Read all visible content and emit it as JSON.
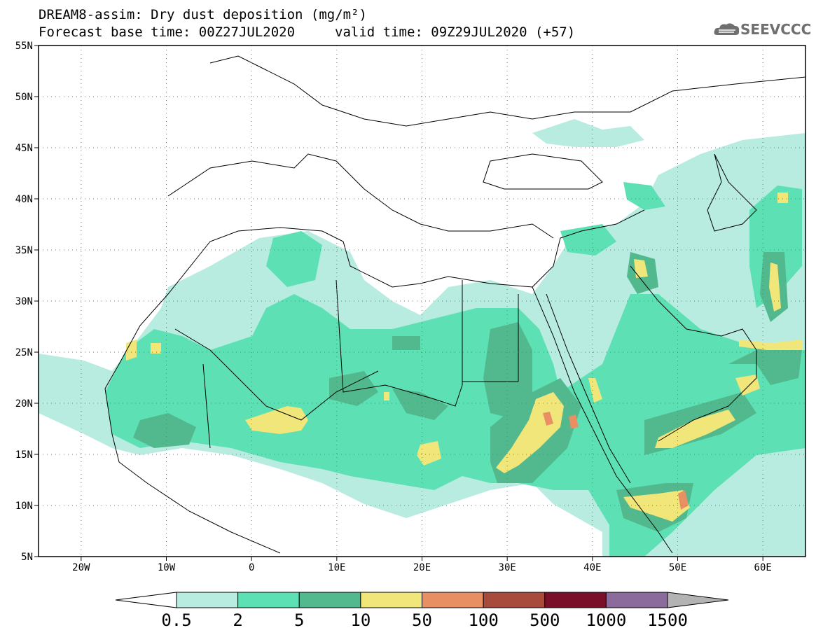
{
  "header": {
    "title": "DREAM8-assim: Dry dust deposition (mg/m²)",
    "base_time": "Forecast base time: 00Z27JUL2020",
    "valid_time": "valid time: 09Z29JUL2020 (+57)",
    "logo_text": "SEEVCCC"
  },
  "map": {
    "lon_range": [
      -25,
      65
    ],
    "lat_range": [
      5,
      55
    ],
    "lon_ticks": [
      {
        "value": -20,
        "label": "20W"
      },
      {
        "value": -10,
        "label": "10W"
      },
      {
        "value": 0,
        "label": "0"
      },
      {
        "value": 10,
        "label": "10E"
      },
      {
        "value": 20,
        "label": "20E"
      },
      {
        "value": 30,
        "label": "30E"
      },
      {
        "value": 40,
        "label": "40E"
      },
      {
        "value": 50,
        "label": "50E"
      },
      {
        "value": 60,
        "label": "60E"
      }
    ],
    "lat_ticks": [
      {
        "value": 55,
        "label": "55N"
      },
      {
        "value": 50,
        "label": "50N"
      },
      {
        "value": 45,
        "label": "45N"
      },
      {
        "value": 40,
        "label": "40N"
      },
      {
        "value": 35,
        "label": "35N"
      },
      {
        "value": 30,
        "label": "30N"
      },
      {
        "value": 25,
        "label": "25N"
      },
      {
        "value": 20,
        "label": "20N"
      },
      {
        "value": 15,
        "label": "15N"
      },
      {
        "value": 10,
        "label": "10N"
      },
      {
        "value": 5,
        "label": "5N"
      }
    ],
    "gridlines": "dotted"
  },
  "colorbar": {
    "colors": [
      "#ffffff",
      "#b8ece1",
      "#5de0b4",
      "#52b88d",
      "#f1e67a",
      "#e98f64",
      "#a84a3c",
      "#7a0f2a",
      "#8b6a9c",
      "#b3b3b3"
    ],
    "labels": [
      "0.5",
      "2",
      "5",
      "10",
      "50",
      "100",
      "500",
      "1000",
      "1500"
    ]
  },
  "legend_colors": {
    "lightest": "#b8ece1",
    "light": "#5de0b4",
    "medium": "#52b88d",
    "yellow": "#f1e67a",
    "orange": "#e98f64"
  }
}
